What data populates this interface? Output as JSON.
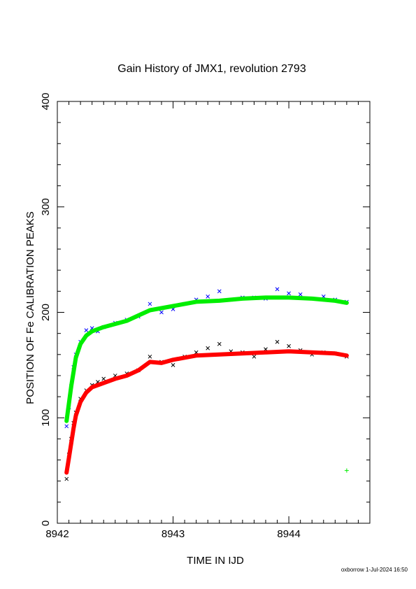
{
  "chart_data": {
    "type": "scatter",
    "title": "Gain History of JMX1, revolution 2793",
    "xlabel": "TIME IN IJD",
    "ylabel": "POSITION OF Fe CALIBRATION PEAKS",
    "xlim": [
      8942.0,
      8944.7
    ],
    "ylim": [
      0,
      400
    ],
    "x_ticks": [
      "8942",
      "8943",
      "8944"
    ],
    "y_ticks": [
      "0",
      "100",
      "200",
      "300",
      "400"
    ],
    "grid": false,
    "colors": {
      "upper_points": "#0000ff",
      "upper_fit": "#00ee00",
      "lower_points": "#000000",
      "lower_fit": "#ff0000",
      "axis": "#000000"
    },
    "series": [
      {
        "id": "upper-points",
        "kind": "points",
        "x": [
          8942.08,
          8942.1,
          8942.12,
          8942.14,
          8942.16,
          8942.2,
          8942.25,
          8942.3,
          8942.35,
          8942.4,
          8942.5,
          8942.6,
          8942.7,
          8942.8,
          8942.9,
          8943.0,
          8943.1,
          8943.2,
          8943.3,
          8943.4,
          8943.5,
          8943.6,
          8943.7,
          8943.8,
          8943.9,
          8944.0,
          8944.1,
          8944.2,
          8944.3,
          8944.4,
          8944.5
        ],
        "y": [
          92,
          110,
          130,
          148,
          160,
          172,
          183,
          185,
          182,
          186,
          190,
          193,
          196,
          208,
          200,
          203,
          208,
          212,
          215,
          220,
          212,
          214,
          214,
          213,
          222,
          218,
          217,
          213,
          215,
          212,
          210
        ]
      },
      {
        "id": "upper-fit",
        "kind": "line",
        "x": [
          8942.08,
          8942.12,
          8942.16,
          8942.2,
          8942.25,
          8942.3,
          8942.4,
          8942.5,
          8942.6,
          8942.7,
          8942.8,
          8942.9,
          8943.0,
          8943.2,
          8943.4,
          8943.6,
          8943.8,
          8944.0,
          8944.2,
          8944.4,
          8944.5
        ],
        "y": [
          97,
          130,
          157,
          170,
          178,
          182,
          186,
          189,
          192,
          197,
          202,
          204,
          206,
          210,
          211,
          213,
          214,
          214,
          213,
          211,
          209
        ]
      },
      {
        "id": "lower-points",
        "kind": "points",
        "x": [
          8942.08,
          8942.1,
          8942.12,
          8942.14,
          8942.16,
          8942.2,
          8942.25,
          8942.3,
          8942.35,
          8942.4,
          8942.5,
          8942.6,
          8942.7,
          8942.8,
          8942.9,
          8943.0,
          8943.1,
          8943.2,
          8943.3,
          8943.4,
          8943.5,
          8943.6,
          8943.7,
          8943.8,
          8943.9,
          8944.0,
          8944.1,
          8944.2,
          8944.3,
          8944.4,
          8944.5
        ],
        "y": [
          42,
          65,
          80,
          95,
          105,
          118,
          126,
          131,
          134,
          137,
          140,
          142,
          145,
          158,
          153,
          150,
          158,
          162,
          166,
          170,
          163,
          162,
          158,
          165,
          172,
          168,
          164,
          160,
          162,
          161,
          158
        ]
      },
      {
        "id": "lower-fit",
        "kind": "line",
        "x": [
          8942.08,
          8942.1,
          8942.12,
          8942.14,
          8942.16,
          8942.2,
          8942.25,
          8942.3,
          8942.4,
          8942.5,
          8942.6,
          8942.7,
          8942.8,
          8942.9,
          8943.0,
          8943.2,
          8943.4,
          8943.6,
          8943.8,
          8944.0,
          8944.2,
          8944.4,
          8944.5
        ],
        "y": [
          48,
          62,
          76,
          90,
          102,
          115,
          124,
          129,
          133,
          137,
          140,
          145,
          153,
          152,
          155,
          159,
          160,
          161,
          162,
          163,
          162,
          161,
          159
        ]
      },
      {
        "id": "outlier",
        "kind": "points",
        "x": [
          8944.5
        ],
        "y": [
          50
        ]
      }
    ],
    "footer": "oxborrow  1-Jul-2024 16:50"
  }
}
